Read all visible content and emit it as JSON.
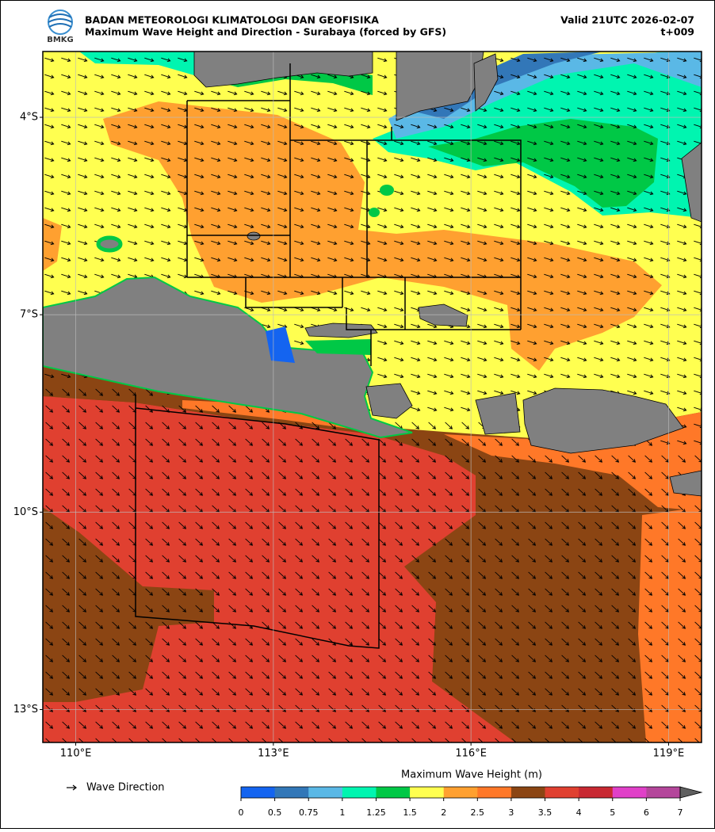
{
  "header": {
    "logo": "BMKG",
    "title": "BADAN METEOROLOGI KLIMATOLOGI DAN GEOFISIKA",
    "subtitle": "Maximum Wave Height and Direction - Surabaya (forced by GFS)",
    "valid": "Valid 21UTC 2026-02-07",
    "lead": "t+009"
  },
  "map": {
    "xlim": [
      109.5,
      119.5
    ],
    "ylim": [
      -13.5,
      -3
    ],
    "xticks": [
      {
        "value": 110,
        "label": "110°E"
      },
      {
        "value": 113,
        "label": "113°E"
      },
      {
        "value": 116,
        "label": "116°E"
      },
      {
        "value": 119,
        "label": "119°E"
      }
    ],
    "yticks": [
      {
        "value": -4,
        "label": "4°S"
      },
      {
        "value": -7,
        "label": "7°S"
      },
      {
        "value": -10,
        "label": "10°S"
      },
      {
        "value": -13,
        "label": "13°S"
      }
    ],
    "grid": true
  },
  "legend": {
    "wave_direction": "Wave Direction"
  },
  "colorbar": {
    "title": "Maximum Wave Height (m)",
    "ticks": [
      0,
      0.5,
      0.75,
      1,
      1.25,
      1.5,
      2,
      2.5,
      3,
      3.5,
      4,
      5,
      6,
      7
    ],
    "colors": [
      "#1464f0",
      "#3277b8",
      "#5ab8e6",
      "#00f5b0",
      "#00c846",
      "#ffff50",
      "#ffa030",
      "#ff7828",
      "#8b4513",
      "#e04030",
      "#c82832",
      "#e040c8",
      "#b4469b"
    ],
    "extend_color": "#606060"
  }
}
